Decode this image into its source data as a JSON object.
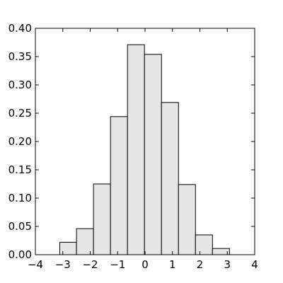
{
  "chart_data": {
    "type": "bar",
    "title": "",
    "xlabel": "",
    "ylabel": "",
    "xlim": [
      -4,
      4
    ],
    "ylim": [
      0,
      0.4
    ],
    "grid": false,
    "bar_fill": "#e5e5e5",
    "bar_edge": "#000000",
    "bins": [
      {
        "x0": -3.11,
        "x1": -2.5,
        "value": 0.022
      },
      {
        "x0": -2.5,
        "x1": -1.88,
        "value": 0.046
      },
      {
        "x0": -1.88,
        "x1": -1.26,
        "value": 0.125
      },
      {
        "x0": -1.26,
        "x1": -0.64,
        "value": 0.244
      },
      {
        "x0": -0.64,
        "x1": -0.02,
        "value": 0.371
      },
      {
        "x0": -0.02,
        "x1": 0.6,
        "value": 0.354
      },
      {
        "x0": 0.6,
        "x1": 1.22,
        "value": 0.269
      },
      {
        "x0": 1.22,
        "x1": 1.84,
        "value": 0.124
      },
      {
        "x0": 1.84,
        "x1": 2.46,
        "value": 0.035
      },
      {
        "x0": 2.46,
        "x1": 3.08,
        "value": 0.011
      }
    ],
    "x_ticks": [
      "−4",
      "−3",
      "−2",
      "−1",
      "0",
      "1",
      "2",
      "3",
      "4"
    ],
    "x_tick_values": [
      -4,
      -3,
      -2,
      -1,
      0,
      1,
      2,
      3,
      4
    ],
    "y_ticks": [
      "0.00",
      "0.05",
      "0.10",
      "0.15",
      "0.20",
      "0.25",
      "0.30",
      "0.35",
      "0.40"
    ],
    "y_tick_values": [
      0,
      0.05,
      0.1,
      0.15,
      0.2,
      0.25,
      0.3,
      0.35,
      0.4
    ]
  }
}
